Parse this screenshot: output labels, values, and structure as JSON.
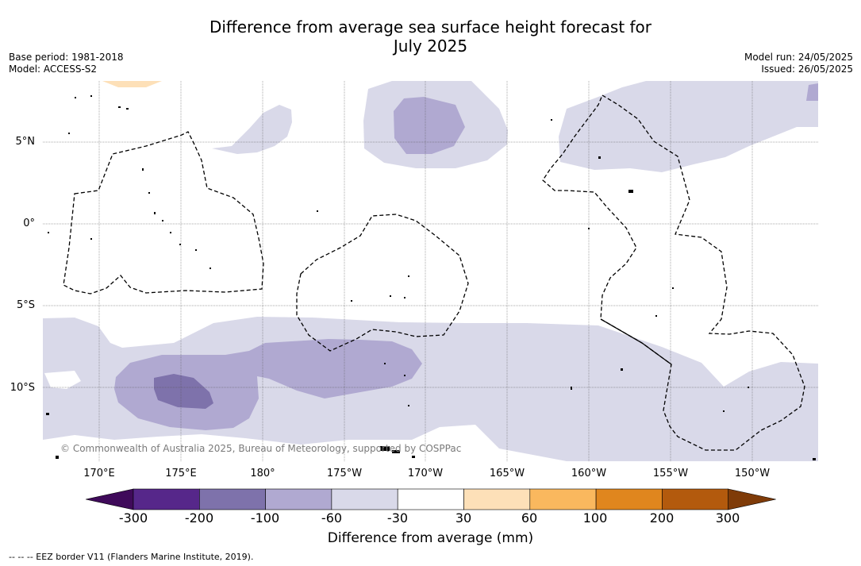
{
  "title": {
    "line1": "Difference from average sea surface height forecast for",
    "line2": "July 2025"
  },
  "meta_left": {
    "base_period": "Base period: 1981-2018",
    "model": "Model: ACCESS-S2"
  },
  "meta_right": {
    "model_run": "Model run: 24/05/2025",
    "issued": "Issued: 26/05/2025"
  },
  "map": {
    "latitude_labels": [
      "5°N",
      "0°",
      "5°S",
      "10°S"
    ],
    "longitude_labels": [
      "170°E",
      "175°E",
      "180°",
      "175°W",
      "170°W",
      "165°W",
      "160°W",
      "155°W",
      "150°W"
    ],
    "copyright": "© Commonwealth of Australia 2025, Bureau of Meteorology, supported by COSPPac",
    "region_colors": {
      "-300": "#3f0a5a",
      "-200": "#56278a",
      "-100": "#7e72ab",
      "-60": "#b0a9d1",
      "-30": "#d9d9e9",
      "30": "#fde0b8",
      "60": "#fab85e",
      "100": "#e0861e",
      "200": "#b35a0d",
      "300": "#7f3b08"
    }
  },
  "colorbar": {
    "ticks": [
      "-300",
      "-200",
      "-100",
      "-60",
      "-30",
      "30",
      "60",
      "100",
      "200",
      "300"
    ],
    "label": "Difference from average (mm)",
    "colors": [
      "#3f0a5a",
      "#56278a",
      "#7e72ab",
      "#b0a9d1",
      "#d9d9e9",
      "#ffffff",
      "#fde0b8",
      "#fab85e",
      "#e0861e",
      "#b35a0d",
      "#7f3b08"
    ]
  },
  "footnote": "-- -- -- EEZ border V11 (Flanders Marine Institute, 2019)."
}
